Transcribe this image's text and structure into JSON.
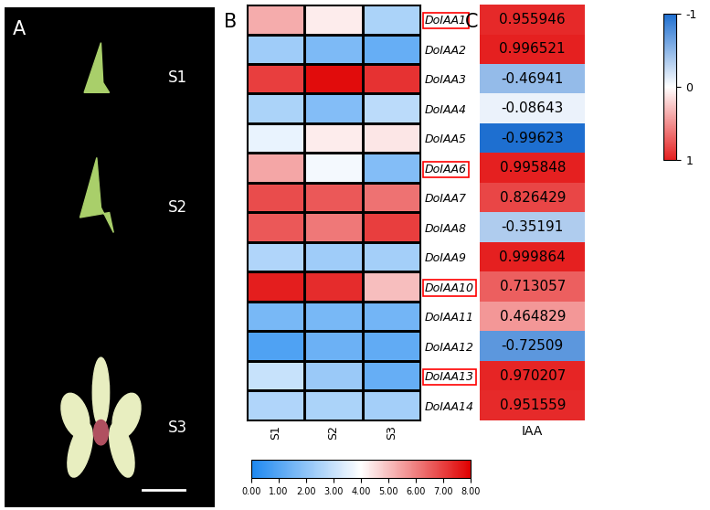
{
  "chart_data": [
    {
      "type": "image",
      "panel": "A",
      "labels": [
        "S1",
        "S2",
        "S3"
      ]
    },
    {
      "type": "heatmap",
      "panel": "B",
      "x": [
        "S1",
        "S2",
        "S3"
      ],
      "y": [
        "DoIAA1",
        "DoIAA2",
        "DoIAA3",
        "DoIAA4",
        "DoIAA5",
        "DoIAA6",
        "DoIAA7",
        "DoIAA8",
        "DoIAA9",
        "DoIAA10",
        "DoIAA11",
        "DoIAA12",
        "DoIAA13",
        "DoIAA14"
      ],
      "cells": [
        [
          5.3,
          4.3,
          2.5
        ],
        [
          2.3,
          1.7,
          1.3
        ],
        [
          7.0,
          7.8,
          7.2
        ],
        [
          2.5,
          1.8,
          2.8
        ],
        [
          3.6,
          4.3,
          4.4
        ],
        [
          5.4,
          3.8,
          1.8
        ],
        [
          6.8,
          6.6,
          6.2
        ],
        [
          6.6,
          6.1,
          7.0
        ],
        [
          2.6,
          2.3,
          2.4
        ],
        [
          7.5,
          7.3,
          5.0
        ],
        [
          1.6,
          1.6,
          1.5
        ],
        [
          0.9,
          1.4,
          1.2
        ],
        [
          3.0,
          2.2,
          1.3
        ],
        [
          2.6,
          2.5,
          2.4
        ]
      ],
      "highlighted": [
        "DoIAA1",
        "DoIAA6",
        "DoIAA10",
        "DoIAA13"
      ],
      "colorbar": {
        "range": [
          0,
          8
        ],
        "ticks": [
          {
            "value": 0,
            "label": "0.00"
          },
          {
            "value": 1,
            "label": "1.00"
          },
          {
            "value": 2,
            "label": "2.00"
          },
          {
            "value": 3,
            "label": "3.00"
          },
          {
            "value": 4,
            "label": "4.00"
          },
          {
            "value": 5,
            "label": "5.00"
          },
          {
            "value": 6,
            "label": "6.00"
          },
          {
            "value": 7,
            "label": "7.00"
          },
          {
            "value": 8,
            "label": "8.00"
          }
        ]
      }
    },
    {
      "type": "heatmap",
      "panel": "C",
      "x": [
        "IAA"
      ],
      "cells": [
        0.955946,
        0.996521,
        -0.46941,
        -0.08643,
        -0.99623,
        0.995848,
        0.826429,
        -0.35191,
        0.999864,
        0.713057,
        0.464829,
        -0.72509,
        0.970207,
        0.951559
      ],
      "data_labels": true,
      "colorbar": {
        "range": [
          -1,
          1
        ],
        "ticks": [
          -1,
          0,
          1
        ]
      }
    }
  ]
}
